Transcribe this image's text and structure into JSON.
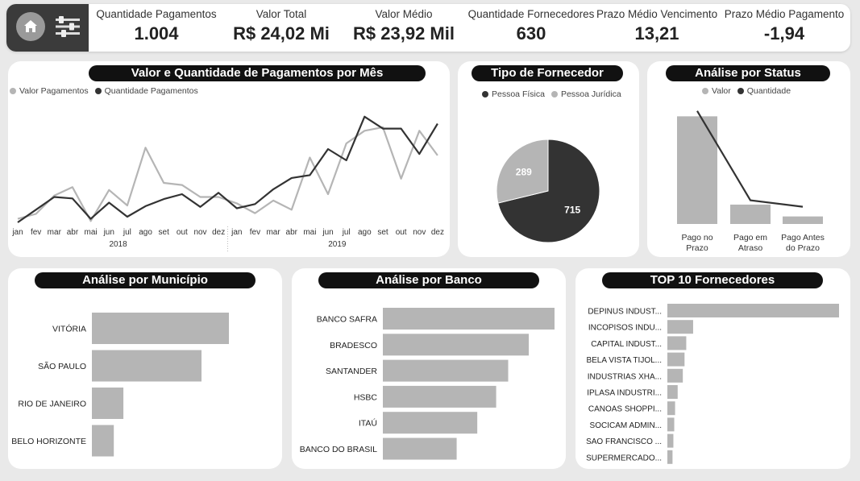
{
  "header": {
    "kpis": [
      {
        "label": "Quantidade Pagamentos",
        "value": "1.004"
      },
      {
        "label": "Valor Total",
        "value": "R$ 24,02 Mi"
      },
      {
        "label": "Valor Médio",
        "value": "R$ 23,92 Mil"
      },
      {
        "label": "Quantidade Fornecedores",
        "value": "630"
      },
      {
        "label": "Prazo Médio Vencimento",
        "value": "13,21"
      },
      {
        "label": "Prazo Médio Pagamento",
        "value": "-1,94"
      }
    ],
    "icons": {
      "home": "home-icon",
      "filter": "sliders-icon"
    }
  },
  "colors": {
    "light": "#b5b5b5",
    "dark": "#333333",
    "pill": "#111111"
  },
  "chart_data": [
    {
      "type": "line",
      "title": "Valor e Quantidade de Pagamentos por Mês",
      "x": [
        "jan",
        "fev",
        "mar",
        "abr",
        "mai",
        "jun",
        "jul",
        "ago",
        "set",
        "out",
        "nov",
        "dez",
        "jan",
        "fev",
        "mar",
        "abr",
        "mai",
        "jun",
        "jul",
        "ago",
        "set",
        "out",
        "nov",
        "dez"
      ],
      "x_groups": [
        {
          "label": "2018",
          "span": 12
        },
        {
          "label": "2019",
          "span": 12
        }
      ],
      "series": [
        {
          "name": "Valor Pagamentos",
          "color": "#b5b5b5",
          "values": [
            5,
            12,
            38,
            50,
            2,
            46,
            24,
            106,
            56,
            53,
            36,
            36,
            27,
            13,
            31,
            18,
            92,
            40,
            112,
            130,
            135,
            62,
            130,
            95
          ]
        },
        {
          "name": "Quantidade Pagamentos",
          "color": "#333333",
          "values": [
            0,
            18,
            36,
            34,
            5,
            28,
            8,
            23,
            33,
            40,
            22,
            42,
            20,
            26,
            47,
            63,
            67,
            104,
            88,
            150,
            133,
            133,
            97,
            140
          ]
        }
      ],
      "ylim": [
        0,
        160
      ],
      "legend": "top-left"
    },
    {
      "type": "pie",
      "title": "Tipo de Fornecedor",
      "labels": [
        "Pessoa Física",
        "Pessoa Jurídica"
      ],
      "values": [
        715,
        289
      ],
      "colors": [
        "#333333",
        "#b5b5b5"
      ],
      "legend": "top"
    },
    {
      "type": "bar",
      "title": "Análise por Status",
      "categories": [
        "Pago no Prazo",
        "Pago em Atraso",
        "Pago Antes do Prazo"
      ],
      "series": [
        {
          "name": "Valor",
          "color": "#b5b5b5",
          "values": [
            100,
            18,
            7
          ]
        },
        {
          "name": "Quantidade",
          "color": "#333333",
          "values": [
            105,
            22,
            16
          ]
        }
      ],
      "ylim": [
        0,
        110
      ],
      "legend": "top"
    },
    {
      "type": "bar",
      "orientation": "horizontal",
      "title": "Análise por Município",
      "categories": [
        "VITÓRIA",
        "SÃO PAULO",
        "RIO DE JANEIRO",
        "BELO HORIZONTE"
      ],
      "values": [
        100,
        80,
        23,
        16
      ],
      "color": "#b5b5b5"
    },
    {
      "type": "bar",
      "orientation": "horizontal",
      "title": "Análise por Banco",
      "categories": [
        "BANCO SAFRA",
        "BRADESCO",
        "SANTANDER",
        "HSBC",
        "ITAÚ",
        "BANCO DO BRASIL"
      ],
      "values": [
        100,
        85,
        73,
        66,
        55,
        43
      ],
      "color": "#b5b5b5"
    },
    {
      "type": "bar",
      "orientation": "horizontal",
      "title": "TOP 10 Fornecedores",
      "categories": [
        "DEPINUS INDUST...",
        "INCOPISOS INDU...",
        "CAPITAL INDUST...",
        "BELA VISTA TIJOL...",
        "INDUSTRIAS XHA...",
        "IPLASA INDUSTRI...",
        "CANOAS SHOPPI...",
        "SOCICAM ADMIN...",
        "SAO FRANCISCO ...",
        "SUPERMERCADO..."
      ],
      "values": [
        100,
        15,
        11,
        10,
        9,
        6,
        4.5,
        4,
        3.5,
        3
      ],
      "color": "#b5b5b5"
    }
  ]
}
